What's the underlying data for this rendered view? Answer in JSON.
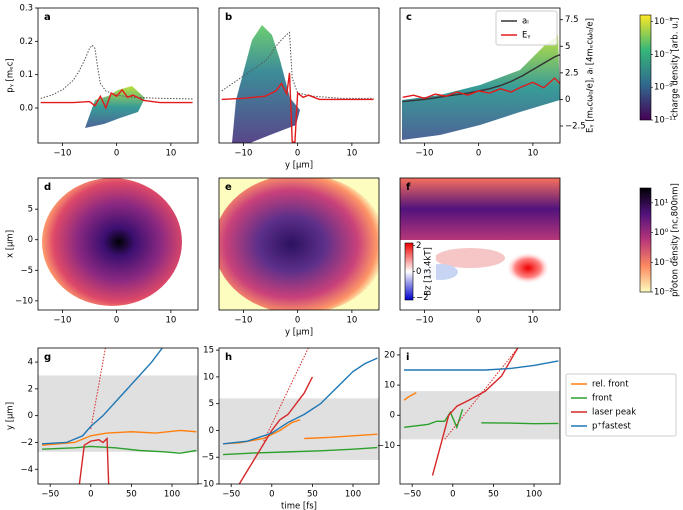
{
  "chart_data": [
    {
      "type": "line",
      "label": "a",
      "xlim": [
        -14.5,
        15
      ],
      "xticks": [
        {
          "value": -10,
          "label": "−10"
        },
        0,
        10
      ],
      "ylim": [
        -0.105,
        0.3
      ],
      "yticks": [
        {
          "value": 0,
          "label": "0.0"
        },
        0.1,
        0.2,
        0.3
      ],
      "ylabel": "pᵧ [mₑc]",
      "y2lim": [
        -4.1,
        8.6
      ],
      "series": [
        {
          "color": "#555555",
          "style": "dotted",
          "axis": "y2",
          "x": [
            -14,
            -12,
            -10,
            -8,
            -7,
            -6,
            -5,
            -4.5,
            -4,
            -3.5,
            -3,
            -2,
            0,
            3,
            8,
            14
          ],
          "values": [
            0.1,
            0.4,
            0.9,
            1.8,
            2.6,
            3.6,
            4.8,
            5.1,
            4.8,
            3,
            1.5,
            0.8,
            0.4,
            0.2,
            0.1,
            0.05
          ]
        },
        {
          "color": "#e31a1c",
          "axis": "y2",
          "x": [
            -14,
            -8,
            -5,
            -4,
            -3,
            -2,
            -1,
            0,
            1,
            2,
            3,
            5,
            8,
            14
          ],
          "values": [
            -0.3,
            -0.3,
            -0.2,
            -0.6,
            0.3,
            -0.8,
            0.6,
            0.3,
            0.9,
            0.2,
            0.4,
            -0.1,
            -0.3,
            -0.3
          ]
        }
      ]
    },
    {
      "type": "line",
      "label": "b",
      "xlim": [
        -14.5,
        15
      ],
      "xticks": [
        {
          "value": -10,
          "label": "−10"
        },
        0,
        10
      ],
      "xlabel": "y [μm]",
      "y2lim": [
        -4.1,
        8.6
      ],
      "series": [
        {
          "color": "#555555",
          "style": "dotted",
          "axis": "y2",
          "x": [
            -14,
            -12,
            -10,
            -8,
            -6,
            -5,
            -4,
            -3,
            -2,
            -1.5,
            -1,
            0,
            3,
            8,
            14
          ],
          "values": [
            0.8,
            1.5,
            2.2,
            2.9,
            3.6,
            4.2,
            5,
            5.6,
            6.1,
            6.3,
            2,
            0.6,
            0.3,
            0.1,
            0.1
          ]
        },
        {
          "color": "#e31a1c",
          "axis": "y2",
          "x": [
            -14,
            -10,
            -6,
            -4,
            -3,
            -2,
            -1.5,
            -1,
            -0.5,
            0,
            1,
            2,
            4,
            8,
            14
          ],
          "values": [
            0,
            0.1,
            0.3,
            0.8,
            1.5,
            0.5,
            2.5,
            -4,
            -4,
            0.6,
            0.2,
            0.4,
            0,
            0,
            0
          ]
        }
      ]
    },
    {
      "type": "line",
      "label": "c",
      "xlim": [
        -14.5,
        15
      ],
      "xticks": [
        {
          "value": -10,
          "label": "−10"
        },
        0,
        10
      ],
      "y2lim": [
        -4.1,
        8.6
      ],
      "y2ticks": [
        7.5,
        5,
        2.5,
        0,
        {
          "value": -2.5,
          "label": "−2.5"
        }
      ],
      "y2label": "Eᵧ [mₑcω₀/e], aₗ [4mₑcω₀/e]",
      "legend": "upper right",
      "series": [
        {
          "name": "aₗ",
          "color": "#333333",
          "axis": "y2",
          "x": [
            -14,
            -10,
            -6,
            -2,
            0,
            2,
            4,
            6,
            8,
            10,
            12,
            14,
            15
          ],
          "values": [
            -0.2,
            0,
            0.3,
            0.6,
            0.8,
            1,
            1.3,
            1.7,
            2.2,
            2.8,
            3.4,
            4,
            4.2
          ]
        },
        {
          "name": "Eᵧ",
          "color": "#e31a1c",
          "axis": "y2",
          "x": [
            -14,
            -12,
            -10,
            -8,
            -6,
            -4,
            -2,
            0,
            2,
            4,
            6,
            8,
            10,
            12,
            14,
            15
          ],
          "values": [
            0.2,
            0.4,
            0.1,
            0.5,
            0.3,
            0.7,
            0.4,
            0.8,
            0.6,
            1,
            0.7,
            1.2,
            1.6,
            1.1,
            2,
            1.5
          ]
        }
      ]
    },
    {
      "type": "image",
      "label": "d",
      "xlim": [
        -14.5,
        15
      ],
      "xticks": [
        {
          "value": -10,
          "label": "−10"
        },
        0,
        10
      ],
      "ylim": [
        -11.5,
        10.1
      ],
      "yticks": [
        5,
        0,
        {
          "value": -5,
          "label": "−5"
        },
        {
          "value": -10,
          "label": "−10"
        }
      ],
      "ylabel": "x [μm]"
    },
    {
      "type": "image",
      "label": "e",
      "xlim": [
        -14.5,
        15
      ],
      "xticks": [
        {
          "value": -10,
          "label": "−10"
        },
        0,
        10
      ],
      "xlabel": "y [μm]"
    },
    {
      "type": "image",
      "label": "f",
      "xlim": [
        -14.5,
        15
      ],
      "xticks": [
        {
          "value": -10,
          "label": "−10"
        },
        0,
        10
      ]
    },
    {
      "type": "line",
      "label": "g",
      "xlim": [
        -65,
        132
      ],
      "xticks": [
        {
          "value": -50,
          "label": "−50"
        },
        0,
        50,
        100
      ],
      "ylim": [
        -5.1,
        5.05
      ],
      "yticks": [
        4,
        2,
        0,
        {
          "value": -2,
          "label": "−2"
        },
        {
          "value": -4,
          "label": "−4"
        }
      ],
      "ylabel": "y [μm]",
      "band": [
        -2.7,
        3
      ],
      "series": [
        {
          "color": "#ff7f0e",
          "x": [
            -60,
            -20,
            0,
            20,
            50,
            80,
            110,
            130
          ],
          "values": [
            -2.2,
            -2,
            -1.5,
            -1.3,
            -1.2,
            -1.3,
            -1.1,
            -1.2
          ]
        },
        {
          "color": "#2ca02c",
          "x": [
            -60,
            -20,
            0,
            30,
            60,
            90,
            110,
            130
          ],
          "values": [
            -2.5,
            -2.4,
            -2.3,
            -2.4,
            -2.6,
            -2.7,
            -2.8,
            -2.6
          ]
        },
        {
          "color": "#d62728",
          "x": [
            -14,
            -8,
            0,
            10,
            15,
            20,
            22
          ],
          "values": [
            -5.1,
            -2.2,
            -1.9,
            -1.8,
            -2,
            -1.7,
            -5.1
          ]
        },
        {
          "color": "#d62728",
          "style": "dotted",
          "x": [
            0,
            18
          ],
          "values": [
            -1,
            5.05
          ]
        },
        {
          "color": "#1f77b4",
          "x": [
            -60,
            -30,
            -10,
            0,
            15,
            30,
            45,
            60,
            75,
            88
          ],
          "values": [
            -2.1,
            -2,
            -1.5,
            -0.8,
            0,
            1,
            2,
            3,
            4,
            5.05
          ]
        }
      ]
    },
    {
      "type": "line",
      "label": "h",
      "xlim": [
        -65,
        132
      ],
      "xticks": [
        {
          "value": -50,
          "label": "−50"
        },
        0,
        50,
        100
      ],
      "xlabel": "time [fs]",
      "ylim": [
        -10,
        15.4
      ],
      "yticks": [
        15,
        10,
        5,
        0,
        {
          "value": -5,
          "label": "−5"
        },
        {
          "value": -10,
          "label": "−10"
        }
      ],
      "band": [
        -5.5,
        6
      ],
      "series": [
        {
          "color": "#ff7f0e",
          "x": [
            -60,
            -40,
            -10,
            10,
            25,
            35,
            null,
            40,
            70,
            100,
            130
          ],
          "values": [
            -2.5,
            -2.3,
            -1.5,
            0,
            1.5,
            2,
            null,
            -1.5,
            -1.3,
            -1,
            -0.7
          ]
        },
        {
          "color": "#2ca02c",
          "x": [
            -60,
            -20,
            20,
            60,
            100,
            130
          ],
          "values": [
            -4.5,
            -4.2,
            -4,
            -3.8,
            -3.5,
            -3.2
          ]
        },
        {
          "color": "#d62728",
          "x": [
            -40,
            -20,
            0,
            10,
            20,
            30,
            40,
            50
          ],
          "values": [
            -10,
            -5,
            0,
            2,
            3,
            5,
            7,
            10
          ]
        },
        {
          "color": "#d62728",
          "style": "dotted",
          "x": [
            -10,
            45
          ],
          "values": [
            -2,
            15.4
          ]
        },
        {
          "color": "#1f77b4",
          "x": [
            -60,
            -30,
            0,
            20,
            40,
            60,
            80,
            100,
            115,
            130
          ],
          "values": [
            -2.5,
            -2,
            -0.5,
            1.5,
            3,
            5,
            8,
            11,
            12.5,
            13.5
          ]
        }
      ]
    },
    {
      "type": "line",
      "label": "i",
      "xlim": [
        -65,
        132
      ],
      "xticks": [
        {
          "value": -50,
          "label": "−50"
        },
        0,
        50,
        100
      ],
      "ylim": [
        -22.8,
        22.3
      ],
      "yticks": [
        20,
        10,
        0,
        {
          "value": -10,
          "label": "−10"
        }
      ],
      "band": [
        -8,
        8
      ],
      "legend": "outside right",
      "series": [
        {
          "name": "rel. front",
          "color": "#ff7f0e",
          "x": [
            -60,
            -55,
            -45
          ],
          "values": [
            5,
            6,
            7.5
          ]
        },
        {
          "name": "front",
          "color": "#2ca02c",
          "x": [
            -60,
            -30,
            -20,
            -10,
            -3,
            5,
            12,
            null,
            35,
            70,
            100,
            130
          ],
          "values": [
            -4,
            -3,
            -2,
            -2,
            1,
            -4,
            2,
            null,
            -2.5,
            -2.6,
            -2.8,
            -2.7
          ]
        },
        {
          "name": "laser peak",
          "color": "#d62728",
          "x": [
            -25,
            -15,
            -5,
            5,
            20,
            40,
            60,
            75,
            80
          ],
          "values": [
            -20,
            -10,
            0,
            3,
            5,
            8,
            13,
            20,
            22.3
          ]
        },
        {
          "color": "#d62728",
          "style": "dotted",
          "x": [
            -10,
            80
          ],
          "values": [
            -8,
            22.3
          ]
        },
        {
          "name": "p⁺fastest",
          "color": "#1f77b4",
          "x": [
            -60,
            0,
            40,
            70,
            100,
            130
          ],
          "values": [
            15,
            15,
            15,
            15.5,
            16.5,
            18
          ]
        }
      ]
    }
  ],
  "colorbars": [
    {
      "label": "charge density [arb. u.]",
      "lim": [
        -11,
        -4.6
      ],
      "ticks": [
        {
          "value": -5,
          "label": "10⁻⁵"
        },
        {
          "value": -7,
          "label": "10⁻⁷"
        },
        {
          "value": -9,
          "label": "10⁻⁹"
        },
        {
          "value": -11,
          "label": "10⁻¹¹"
        }
      ],
      "colors": [
        "#440154",
        "#31688e",
        "#35b779",
        "#fde725"
      ]
    },
    {
      "label": "proton density [nc,800nm]",
      "lim": [
        -2,
        1.5
      ],
      "ticks": [
        {
          "value": 1,
          "label": "10¹"
        },
        {
          "value": 0,
          "label": "10⁰"
        },
        {
          "value": -1,
          "label": "10⁻¹"
        },
        {
          "value": -2,
          "label": "10⁻²"
        }
      ],
      "colors": [
        "#fcfdbf",
        "#fc8961",
        "#b73779",
        "#51127c",
        "#000004"
      ]
    },
    {
      "label": "Bz [13.4kT]",
      "lim": [
        -2.2,
        2.2
      ],
      "ticks": [
        2,
        0,
        {
          "value": -2,
          "label": "−2"
        }
      ],
      "colors": [
        "#0000cc",
        "#ffffff",
        "#ee0000"
      ]
    }
  ]
}
